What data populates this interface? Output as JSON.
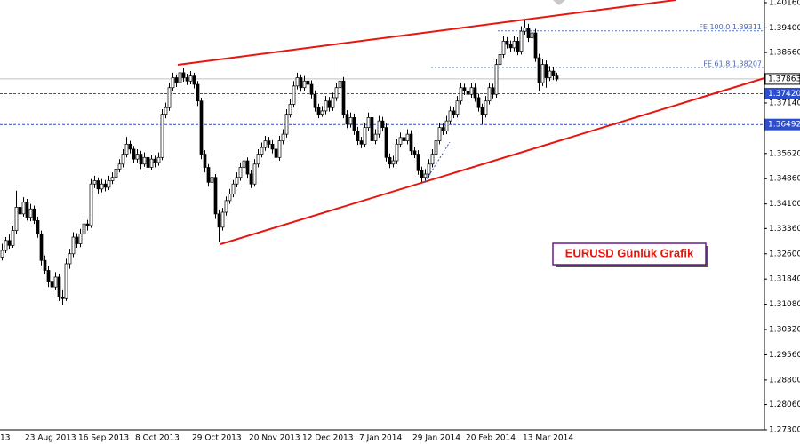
{
  "chart_data": {
    "type": "candlestick",
    "title": "EURUSD Günlük Grafik",
    "up_color": "#ffffff",
    "down_color": "#000000",
    "line_color": "#000000",
    "ylim": [
      1.273,
      1.4024
    ],
    "yticks": [
      {
        "value": 1.4016,
        "label": "1.40160"
      },
      {
        "value": 1.394,
        "label": "1.39400"
      },
      {
        "value": 1.3866,
        "label": "1.38660"
      },
      {
        "value": 1.3714,
        "label": "1.37140"
      },
      {
        "value": 1.3562,
        "label": "1.35620"
      },
      {
        "value": 1.3486,
        "label": "1.34860"
      },
      {
        "value": 1.341,
        "label": "1.34100"
      },
      {
        "value": 1.3336,
        "label": "1.33360"
      },
      {
        "value": 1.326,
        "label": "1.32600"
      },
      {
        "value": 1.3184,
        "label": "1.31840"
      },
      {
        "value": 1.3108,
        "label": "1.31080"
      },
      {
        "value": 1.3032,
        "label": "1.30320"
      },
      {
        "value": 1.2956,
        "label": "1.29560"
      },
      {
        "value": 1.288,
        "label": "1.28800"
      },
      {
        "value": 1.2806,
        "label": "1.28060"
      },
      {
        "value": 1.273,
        "label": "1.27300"
      }
    ],
    "price_lines": [
      {
        "value": 1.37863,
        "label": "1.37863",
        "color": "#c0c0c0",
        "dashed": false
      },
      {
        "value": 1.3742,
        "label": "1.37420",
        "color": "#2b4fd0",
        "dashed": true
      },
      {
        "value": 1.36492,
        "label": "1.36492",
        "color": "#2b4fd0",
        "dashed": true
      }
    ],
    "fe_levels": [
      {
        "value": 1.39311,
        "label": "FE 100.0 1.39311"
      },
      {
        "value": 1.38207,
        "label": "FE 61.8 1.38207"
      }
    ],
    "categories": [
      "13",
      null,
      null,
      null,
      null,
      null,
      null,
      "23 Aug 2013",
      null,
      null,
      null,
      null,
      null,
      null,
      null,
      null,
      null,
      null,
      null,
      null,
      null,
      null,
      "16 Sep 2013",
      null,
      null,
      null,
      null,
      null,
      null,
      null,
      null,
      null,
      null,
      null,
      null,
      null,
      null,
      null,
      "8 Oct 2013",
      null,
      null,
      null,
      null,
      null,
      null,
      null,
      null,
      null,
      null,
      null,
      null,
      null,
      null,
      null,
      "29 Oct 2013",
      null,
      null,
      null,
      null,
      null,
      null,
      null,
      null,
      null,
      null,
      null,
      null,
      null,
      null,
      null,
      "20 Nov 2013",
      null,
      null,
      null,
      null,
      null,
      null,
      null,
      null,
      null,
      null,
      null,
      null,
      null,
      null,
      "12 Dec 2013",
      null,
      null,
      null,
      null,
      null,
      null,
      null,
      null,
      null,
      null,
      null,
      null,
      null,
      null,
      null,
      "7 Jan 2014",
      null,
      null,
      null,
      null,
      null,
      null,
      null,
      null,
      null,
      null,
      null,
      null,
      null,
      null,
      "29 Jan 2014",
      null,
      null,
      null,
      null,
      null,
      null,
      null,
      null,
      null,
      null,
      null,
      null,
      null,
      null,
      "20 Feb 2014",
      null,
      null,
      null,
      null,
      null,
      null,
      null,
      null,
      null,
      null,
      null,
      null,
      null,
      null,
      null,
      "13 Mar 2014",
      null,
      null,
      null,
      null,
      null,
      null,
      null,
      null,
      null,
      null
    ],
    "ohlc": [
      [
        1.325,
        1.329,
        1.324,
        1.327
      ],
      [
        1.327,
        1.331,
        1.3262,
        1.33
      ],
      [
        1.33,
        1.3318,
        1.3275,
        1.3285
      ],
      [
        1.3285,
        1.3345,
        1.3278,
        1.333
      ],
      [
        1.333,
        1.345,
        1.332,
        1.34
      ],
      [
        1.34,
        1.3412,
        1.3368,
        1.338
      ],
      [
        1.338,
        1.343,
        1.3372,
        1.3415
      ],
      [
        1.3415,
        1.3425,
        1.336,
        1.337
      ],
      [
        1.337,
        1.341,
        1.3358,
        1.3395
      ],
      [
        1.3395,
        1.3405,
        1.335,
        1.336
      ],
      [
        1.336,
        1.3372,
        1.3308,
        1.332
      ],
      [
        1.332,
        1.333,
        1.3225,
        1.324
      ],
      [
        1.324,
        1.3255,
        1.3198,
        1.321
      ],
      [
        1.321,
        1.3222,
        1.316,
        1.3175
      ],
      [
        1.3175,
        1.319,
        1.3145,
        1.316
      ],
      [
        1.316,
        1.3205,
        1.315,
        1.319
      ],
      [
        1.319,
        1.32,
        1.3118,
        1.313
      ],
      [
        1.313,
        1.315,
        1.3105,
        1.3125
      ],
      [
        1.3125,
        1.3245,
        1.3118,
        1.323
      ],
      [
        1.323,
        1.3275,
        1.3215,
        1.326
      ],
      [
        1.326,
        1.3325,
        1.325,
        1.331
      ],
      [
        1.331,
        1.3322,
        1.3278,
        1.329
      ],
      [
        1.329,
        1.3335,
        1.328,
        1.332
      ],
      [
        1.332,
        1.3365,
        1.331,
        1.335
      ],
      [
        1.335,
        1.3362,
        1.333,
        1.3345
      ],
      [
        1.3345,
        1.3485,
        1.3338,
        1.347
      ],
      [
        1.347,
        1.3495,
        1.3458,
        1.348
      ],
      [
        1.348,
        1.349,
        1.344,
        1.3455
      ],
      [
        1.3455,
        1.3485,
        1.3445,
        1.347
      ],
      [
        1.347,
        1.3482,
        1.3448,
        1.346
      ],
      [
        1.346,
        1.3495,
        1.3452,
        1.348
      ],
      [
        1.348,
        1.3505,
        1.347,
        1.349
      ],
      [
        1.349,
        1.3528,
        1.3482,
        1.3515
      ],
      [
        1.3515,
        1.3545,
        1.3505,
        1.353
      ],
      [
        1.353,
        1.3575,
        1.352,
        1.356
      ],
      [
        1.356,
        1.3612,
        1.355,
        1.359
      ],
      [
        1.359,
        1.36,
        1.3562,
        1.3575
      ],
      [
        1.3575,
        1.3585,
        1.3532,
        1.3545
      ],
      [
        1.3545,
        1.3575,
        1.3535,
        1.356
      ],
      [
        1.356,
        1.357,
        1.3515,
        1.353
      ],
      [
        1.353,
        1.3565,
        1.3522,
        1.355
      ],
      [
        1.355,
        1.3562,
        1.3505,
        1.352
      ],
      [
        1.352,
        1.3558,
        1.3512,
        1.3545
      ],
      [
        1.3545,
        1.3555,
        1.352,
        1.3535
      ],
      [
        1.3535,
        1.3565,
        1.3525,
        1.355
      ],
      [
        1.355,
        1.3695,
        1.3542,
        1.368
      ],
      [
        1.368,
        1.3715,
        1.3668,
        1.37
      ],
      [
        1.37,
        1.3775,
        1.369,
        1.376
      ],
      [
        1.376,
        1.3805,
        1.375,
        1.379
      ],
      [
        1.379,
        1.38,
        1.3762,
        1.3775
      ],
      [
        1.3775,
        1.383,
        1.3765,
        1.3805
      ],
      [
        1.3805,
        1.3818,
        1.3778,
        1.379
      ],
      [
        1.379,
        1.3802,
        1.3768,
        1.378
      ],
      [
        1.378,
        1.381,
        1.377,
        1.3795
      ],
      [
        1.3795,
        1.3805,
        1.3758,
        1.377
      ],
      [
        1.377,
        1.378,
        1.3705,
        1.372
      ],
      [
        1.372,
        1.373,
        1.3545,
        1.356
      ],
      [
        1.356,
        1.3572,
        1.3505,
        1.352
      ],
      [
        1.352,
        1.353,
        1.3462,
        1.3475
      ],
      [
        1.3475,
        1.3505,
        1.3465,
        1.349
      ],
      [
        1.349,
        1.35,
        1.3365,
        1.338
      ],
      [
        1.338,
        1.3392,
        1.3295,
        1.334
      ],
      [
        1.334,
        1.3398,
        1.333,
        1.3385
      ],
      [
        1.3385,
        1.3432,
        1.3375,
        1.342
      ],
      [
        1.342,
        1.3455,
        1.341,
        1.344
      ],
      [
        1.344,
        1.3482,
        1.343,
        1.347
      ],
      [
        1.347,
        1.3505,
        1.346,
        1.349
      ],
      [
        1.349,
        1.3535,
        1.348,
        1.352
      ],
      [
        1.352,
        1.3555,
        1.351,
        1.354
      ],
      [
        1.354,
        1.355,
        1.3488,
        1.35
      ],
      [
        1.35,
        1.3512,
        1.3458,
        1.347
      ],
      [
        1.347,
        1.3545,
        1.3462,
        1.353
      ],
      [
        1.353,
        1.3575,
        1.352,
        1.356
      ],
      [
        1.356,
        1.3595,
        1.355,
        1.358
      ],
      [
        1.358,
        1.3615,
        1.357,
        1.36
      ],
      [
        1.36,
        1.3612,
        1.3578,
        1.359
      ],
      [
        1.359,
        1.3602,
        1.3562,
        1.3575
      ],
      [
        1.3575,
        1.3585,
        1.3538,
        1.355
      ],
      [
        1.355,
        1.3615,
        1.354,
        1.36
      ],
      [
        1.36,
        1.3635,
        1.359,
        1.362
      ],
      [
        1.362,
        1.3695,
        1.361,
        1.368
      ],
      [
        1.368,
        1.3725,
        1.367,
        1.371
      ],
      [
        1.371,
        1.378,
        1.37,
        1.3765
      ],
      [
        1.3765,
        1.3805,
        1.3755,
        1.379
      ],
      [
        1.379,
        1.38,
        1.3748,
        1.376
      ],
      [
        1.376,
        1.3795,
        1.375,
        1.378
      ],
      [
        1.378,
        1.3792,
        1.3758,
        1.377
      ],
      [
        1.377,
        1.3782,
        1.3728,
        1.374
      ],
      [
        1.374,
        1.3752,
        1.3688,
        1.37
      ],
      [
        1.37,
        1.3712,
        1.3668,
        1.368
      ],
      [
        1.368,
        1.3705,
        1.3672,
        1.369
      ],
      [
        1.369,
        1.3735,
        1.368,
        1.372
      ],
      [
        1.372,
        1.3732,
        1.3688,
        1.37
      ],
      [
        1.37,
        1.3745,
        1.369,
        1.373
      ],
      [
        1.373,
        1.3775,
        1.372,
        1.376
      ],
      [
        1.376,
        1.3893,
        1.375,
        1.378
      ],
      [
        1.378,
        1.3792,
        1.3668,
        1.368
      ],
      [
        1.368,
        1.3692,
        1.3638,
        1.365
      ],
      [
        1.365,
        1.3685,
        1.364,
        1.367
      ],
      [
        1.367,
        1.3682,
        1.3618,
        1.363
      ],
      [
        1.363,
        1.3642,
        1.3588,
        1.36
      ],
      [
        1.36,
        1.3612,
        1.3578,
        1.359
      ],
      [
        1.359,
        1.3655,
        1.358,
        1.364
      ],
      [
        1.364,
        1.3685,
        1.363,
        1.367
      ],
      [
        1.367,
        1.3682,
        1.3588,
        1.36
      ],
      [
        1.36,
        1.3635,
        1.359,
        1.362
      ],
      [
        1.362,
        1.3675,
        1.361,
        1.366
      ],
      [
        1.366,
        1.3672,
        1.3628,
        1.364
      ],
      [
        1.364,
        1.3652,
        1.3538,
        1.355
      ],
      [
        1.355,
        1.3562,
        1.3518,
        1.353
      ],
      [
        1.353,
        1.3555,
        1.352,
        1.354
      ],
      [
        1.354,
        1.3605,
        1.353,
        1.359
      ],
      [
        1.359,
        1.3625,
        1.358,
        1.361
      ],
      [
        1.361,
        1.3622,
        1.3588,
        1.36
      ],
      [
        1.36,
        1.3635,
        1.359,
        1.362
      ],
      [
        1.362,
        1.3632,
        1.3558,
        1.357
      ],
      [
        1.357,
        1.3582,
        1.3548,
        1.356
      ],
      [
        1.356,
        1.3572,
        1.3498,
        1.351
      ],
      [
        1.351,
        1.3522,
        1.3475,
        1.349
      ],
      [
        1.349,
        1.3515,
        1.348,
        1.35
      ],
      [
        1.35,
        1.3545,
        1.349,
        1.353
      ],
      [
        1.353,
        1.3575,
        1.352,
        1.356
      ],
      [
        1.356,
        1.3615,
        1.355,
        1.36
      ],
      [
        1.36,
        1.3655,
        1.359,
        1.364
      ],
      [
        1.364,
        1.3652,
        1.3618,
        1.363
      ],
      [
        1.363,
        1.3675,
        1.362,
        1.366
      ],
      [
        1.366,
        1.3705,
        1.365,
        1.369
      ],
      [
        1.369,
        1.3702,
        1.3668,
        1.368
      ],
      [
        1.368,
        1.3735,
        1.367,
        1.372
      ],
      [
        1.372,
        1.3775,
        1.371,
        1.376
      ],
      [
        1.376,
        1.3772,
        1.3738,
        1.375
      ],
      [
        1.375,
        1.3762,
        1.3728,
        1.374
      ],
      [
        1.374,
        1.3775,
        1.373,
        1.376
      ],
      [
        1.376,
        1.3772,
        1.3718,
        1.373
      ],
      [
        1.373,
        1.3742,
        1.3688,
        1.37
      ],
      [
        1.37,
        1.3712,
        1.365,
        1.368
      ],
      [
        1.368,
        1.3735,
        1.367,
        1.372
      ],
      [
        1.372,
        1.3775,
        1.371,
        1.376
      ],
      [
        1.376,
        1.3772,
        1.3728,
        1.374
      ],
      [
        1.374,
        1.3845,
        1.373,
        1.383
      ],
      [
        1.383,
        1.3875,
        1.382,
        1.386
      ],
      [
        1.386,
        1.3915,
        1.385,
        1.39
      ],
      [
        1.39,
        1.3912,
        1.3878,
        1.389
      ],
      [
        1.389,
        1.3902,
        1.3868,
        1.388
      ],
      [
        1.388,
        1.3915,
        1.387,
        1.39
      ],
      [
        1.39,
        1.3912,
        1.3858,
        1.387
      ],
      [
        1.387,
        1.3945,
        1.386,
        1.393
      ],
      [
        1.393,
        1.3966,
        1.392,
        1.394
      ],
      [
        1.394,
        1.3952,
        1.3898,
        1.391
      ],
      [
        1.391,
        1.394,
        1.39,
        1.3925
      ],
      [
        1.3925,
        1.3937,
        1.3838,
        1.385
      ],
      [
        1.385,
        1.3862,
        1.375,
        1.3775
      ],
      [
        1.3775,
        1.3845,
        1.3765,
        1.383
      ],
      [
        1.383,
        1.3842,
        1.376,
        1.379
      ],
      [
        1.379,
        1.3825,
        1.378,
        1.381
      ],
      [
        1.381,
        1.3822,
        1.3783,
        1.3795
      ],
      [
        1.3795,
        1.3805,
        1.378,
        1.3786
      ]
    ]
  }
}
